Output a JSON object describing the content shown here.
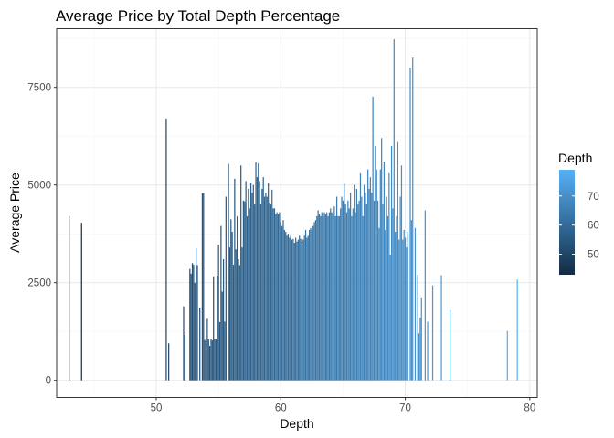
{
  "chart_data": {
    "type": "bar",
    "title": "Average Price by Total Depth Percentage",
    "xlabel": "Depth",
    "ylabel": "Average Price",
    "xlim": [
      42,
      80.6
    ],
    "ylim": [
      -440,
      9000
    ],
    "x_ticks": [
      50,
      60,
      70,
      80
    ],
    "y_ticks": [
      0,
      2500,
      5000,
      7500
    ],
    "x_tick_labels": [
      "50",
      "60",
      "70",
      "80"
    ],
    "y_tick_labels": [
      "0",
      "2500",
      "5000",
      "7500"
    ],
    "grid": true,
    "legend": {
      "title": "Depth",
      "position": "right",
      "type": "colorbar",
      "range": [
        43,
        79
      ],
      "ticks": [
        50,
        60,
        70
      ],
      "tick_labels": [
        "50",
        "60",
        "70"
      ],
      "low_color": "#132b43",
      "high_color": "#56b1f7"
    },
    "colors": {
      "low": "#132b43",
      "high": "#56b1f7",
      "grid_major": "#ebebeb",
      "grid_minor": "#f5f5f5",
      "panel_border": "#333333"
    },
    "points": [
      {
        "x": 43,
        "y": 4206
      },
      {
        "x": 44,
        "y": 4032
      },
      {
        "x": 50.8,
        "y": 6701
      },
      {
        "x": 51,
        "y": 945
      },
      {
        "x": 52.2,
        "y": 1895
      },
      {
        "x": 52.3,
        "y": 1166
      },
      {
        "x": 52.7,
        "y": 2850
      },
      {
        "x": 52.8,
        "y": 2730
      },
      {
        "x": 52.9,
        "y": 3000
      },
      {
        "x": 53,
        "y": 2960
      },
      {
        "x": 53.1,
        "y": 2500
      },
      {
        "x": 53.2,
        "y": 3380
      },
      {
        "x": 53.3,
        "y": 2950
      },
      {
        "x": 53.5,
        "y": 1860
      },
      {
        "x": 53.7,
        "y": 4790
      },
      {
        "x": 53.8,
        "y": 4790
      },
      {
        "x": 53.9,
        "y": 1030
      },
      {
        "x": 54,
        "y": 1000
      },
      {
        "x": 54.1,
        "y": 1570
      },
      {
        "x": 54.2,
        "y": 1050
      },
      {
        "x": 54.3,
        "y": 880
      },
      {
        "x": 54.4,
        "y": 1050
      },
      {
        "x": 54.5,
        "y": 1020
      },
      {
        "x": 54.6,
        "y": 2640
      },
      {
        "x": 54.7,
        "y": 1050
      },
      {
        "x": 54.8,
        "y": 1050
      },
      {
        "x": 54.9,
        "y": 2680
      },
      {
        "x": 55,
        "y": 3470
      },
      {
        "x": 55.1,
        "y": 1490
      },
      {
        "x": 55.2,
        "y": 3950
      },
      {
        "x": 55.3,
        "y": 2270
      },
      {
        "x": 55.4,
        "y": 3100
      },
      {
        "x": 55.5,
        "y": 1500
      },
      {
        "x": 55.6,
        "y": 4700
      },
      {
        "x": 55.8,
        "y": 5540
      },
      {
        "x": 55.9,
        "y": 3400
      },
      {
        "x": 56,
        "y": 4120
      },
      {
        "x": 56.1,
        "y": 3800
      },
      {
        "x": 56.2,
        "y": 2960
      },
      {
        "x": 56.3,
        "y": 5160
      },
      {
        "x": 56.4,
        "y": 3350
      },
      {
        "x": 56.5,
        "y": 4200
      },
      {
        "x": 56.6,
        "y": 3100
      },
      {
        "x": 56.7,
        "y": 2950
      },
      {
        "x": 56.8,
        "y": 5500
      },
      {
        "x": 56.9,
        "y": 3400
      },
      {
        "x": 57,
        "y": 4600
      },
      {
        "x": 57.1,
        "y": 4580
      },
      {
        "x": 57.2,
        "y": 5100
      },
      {
        "x": 57.3,
        "y": 4200
      },
      {
        "x": 57.4,
        "y": 4900
      },
      {
        "x": 57.5,
        "y": 4400
      },
      {
        "x": 57.6,
        "y": 5050
      },
      {
        "x": 57.7,
        "y": 4800
      },
      {
        "x": 57.8,
        "y": 5000
      },
      {
        "x": 57.9,
        "y": 4500
      },
      {
        "x": 58,
        "y": 5580
      },
      {
        "x": 58.1,
        "y": 5200
      },
      {
        "x": 58.2,
        "y": 5550
      },
      {
        "x": 58.3,
        "y": 5100
      },
      {
        "x": 58.4,
        "y": 4500
      },
      {
        "x": 58.5,
        "y": 4900
      },
      {
        "x": 58.6,
        "y": 5200
      },
      {
        "x": 58.7,
        "y": 4700
      },
      {
        "x": 58.8,
        "y": 4800
      },
      {
        "x": 58.9,
        "y": 4700
      },
      {
        "x": 59,
        "y": 5050
      },
      {
        "x": 59.1,
        "y": 4550
      },
      {
        "x": 59.2,
        "y": 4500
      },
      {
        "x": 59.3,
        "y": 4880
      },
      {
        "x": 59.4,
        "y": 4400
      },
      {
        "x": 59.5,
        "y": 4400
      },
      {
        "x": 59.6,
        "y": 4250
      },
      {
        "x": 59.7,
        "y": 4300
      },
      {
        "x": 59.8,
        "y": 4250
      },
      {
        "x": 59.9,
        "y": 4300
      },
      {
        "x": 60,
        "y": 4050
      },
      {
        "x": 60.1,
        "y": 3950
      },
      {
        "x": 60.2,
        "y": 4100
      },
      {
        "x": 60.3,
        "y": 3850
      },
      {
        "x": 60.4,
        "y": 3800
      },
      {
        "x": 60.5,
        "y": 3700
      },
      {
        "x": 60.6,
        "y": 3750
      },
      {
        "x": 60.7,
        "y": 3650
      },
      {
        "x": 60.8,
        "y": 3700
      },
      {
        "x": 60.9,
        "y": 3600
      },
      {
        "x": 61,
        "y": 3620
      },
      {
        "x": 61.1,
        "y": 3520
      },
      {
        "x": 61.2,
        "y": 3650
      },
      {
        "x": 61.3,
        "y": 3550
      },
      {
        "x": 61.4,
        "y": 3600
      },
      {
        "x": 61.5,
        "y": 3700
      },
      {
        "x": 61.6,
        "y": 3620
      },
      {
        "x": 61.7,
        "y": 3550
      },
      {
        "x": 61.8,
        "y": 3600
      },
      {
        "x": 61.9,
        "y": 3700
      },
      {
        "x": 62,
        "y": 3850
      },
      {
        "x": 62.1,
        "y": 3650
      },
      {
        "x": 62.2,
        "y": 3700
      },
      {
        "x": 62.3,
        "y": 3850
      },
      {
        "x": 62.4,
        "y": 3900
      },
      {
        "x": 62.5,
        "y": 3850
      },
      {
        "x": 62.6,
        "y": 3950
      },
      {
        "x": 62.7,
        "y": 4050
      },
      {
        "x": 62.8,
        "y": 4100
      },
      {
        "x": 62.9,
        "y": 4200
      },
      {
        "x": 63,
        "y": 4350
      },
      {
        "x": 63.1,
        "y": 4250
      },
      {
        "x": 63.2,
        "y": 4200
      },
      {
        "x": 63.3,
        "y": 4300
      },
      {
        "x": 63.4,
        "y": 4200
      },
      {
        "x": 63.5,
        "y": 4300
      },
      {
        "x": 63.6,
        "y": 4250
      },
      {
        "x": 63.7,
        "y": 4300
      },
      {
        "x": 63.8,
        "y": 4200
      },
      {
        "x": 63.9,
        "y": 4300
      },
      {
        "x": 64,
        "y": 4400
      },
      {
        "x": 64.1,
        "y": 4300
      },
      {
        "x": 64.2,
        "y": 4250
      },
      {
        "x": 64.3,
        "y": 4450
      },
      {
        "x": 64.4,
        "y": 4200
      },
      {
        "x": 64.5,
        "y": 4700
      },
      {
        "x": 64.6,
        "y": 4200
      },
      {
        "x": 64.7,
        "y": 4200
      },
      {
        "x": 64.8,
        "y": 4400
      },
      {
        "x": 64.9,
        "y": 4700
      },
      {
        "x": 65,
        "y": 4600
      },
      {
        "x": 65.1,
        "y": 5030
      },
      {
        "x": 65.2,
        "y": 4500
      },
      {
        "x": 65.3,
        "y": 4300
      },
      {
        "x": 65.4,
        "y": 4600
      },
      {
        "x": 65.5,
        "y": 4400
      },
      {
        "x": 65.6,
        "y": 4800
      },
      {
        "x": 65.7,
        "y": 4200
      },
      {
        "x": 65.8,
        "y": 4400
      },
      {
        "x": 65.9,
        "y": 5000
      },
      {
        "x": 66,
        "y": 4300
      },
      {
        "x": 66.1,
        "y": 4900
      },
      {
        "x": 66.2,
        "y": 4500
      },
      {
        "x": 66.3,
        "y": 4600
      },
      {
        "x": 66.4,
        "y": 5300
      },
      {
        "x": 66.5,
        "y": 4700
      },
      {
        "x": 66.6,
        "y": 4200
      },
      {
        "x": 66.7,
        "y": 5000
      },
      {
        "x": 66.8,
        "y": 4800
      },
      {
        "x": 66.9,
        "y": 4500
      },
      {
        "x": 67,
        "y": 5400
      },
      {
        "x": 67.1,
        "y": 4900
      },
      {
        "x": 67.2,
        "y": 5200
      },
      {
        "x": 67.3,
        "y": 4800
      },
      {
        "x": 67.4,
        "y": 7260
      },
      {
        "x": 67.5,
        "y": 4600
      },
      {
        "x": 67.6,
        "y": 6000
      },
      {
        "x": 67.7,
        "y": 5400
      },
      {
        "x": 67.8,
        "y": 4600
      },
      {
        "x": 67.9,
        "y": 3900
      },
      {
        "x": 68,
        "y": 5400
      },
      {
        "x": 68.1,
        "y": 6200
      },
      {
        "x": 68.2,
        "y": 4500
      },
      {
        "x": 68.3,
        "y": 5600
      },
      {
        "x": 68.4,
        "y": 3850
      },
      {
        "x": 68.5,
        "y": 4700
      },
      {
        "x": 68.6,
        "y": 4200
      },
      {
        "x": 68.7,
        "y": 5300
      },
      {
        "x": 68.8,
        "y": 3200
      },
      {
        "x": 68.9,
        "y": 6000
      },
      {
        "x": 69,
        "y": 4400
      },
      {
        "x": 69.1,
        "y": 8730
      },
      {
        "x": 69.2,
        "y": 3800
      },
      {
        "x": 69.3,
        "y": 4200
      },
      {
        "x": 69.4,
        "y": 6100
      },
      {
        "x": 69.5,
        "y": 3600
      },
      {
        "x": 69.6,
        "y": 4700
      },
      {
        "x": 69.7,
        "y": 5500
      },
      {
        "x": 69.8,
        "y": 3600
      },
      {
        "x": 69.9,
        "y": 3850
      },
      {
        "x": 70,
        "y": 3650
      },
      {
        "x": 70.1,
        "y": 3400
      },
      {
        "x": 70.2,
        "y": 3800
      },
      {
        "x": 70.4,
        "y": 8000
      },
      {
        "x": 70.5,
        "y": 4100
      },
      {
        "x": 70.6,
        "y": 8260
      },
      {
        "x": 70.8,
        "y": 3900
      },
      {
        "x": 71,
        "y": 2700
      },
      {
        "x": 71.1,
        "y": 1200
      },
      {
        "x": 71.2,
        "y": 1600
      },
      {
        "x": 71.3,
        "y": 2100
      },
      {
        "x": 71.6,
        "y": 4350
      },
      {
        "x": 71.8,
        "y": 1500
      },
      {
        "x": 72.2,
        "y": 2430
      },
      {
        "x": 72.9,
        "y": 2690
      },
      {
        "x": 73.6,
        "y": 1800
      },
      {
        "x": 78.2,
        "y": 1260
      },
      {
        "x": 79,
        "y": 2580
      }
    ]
  }
}
